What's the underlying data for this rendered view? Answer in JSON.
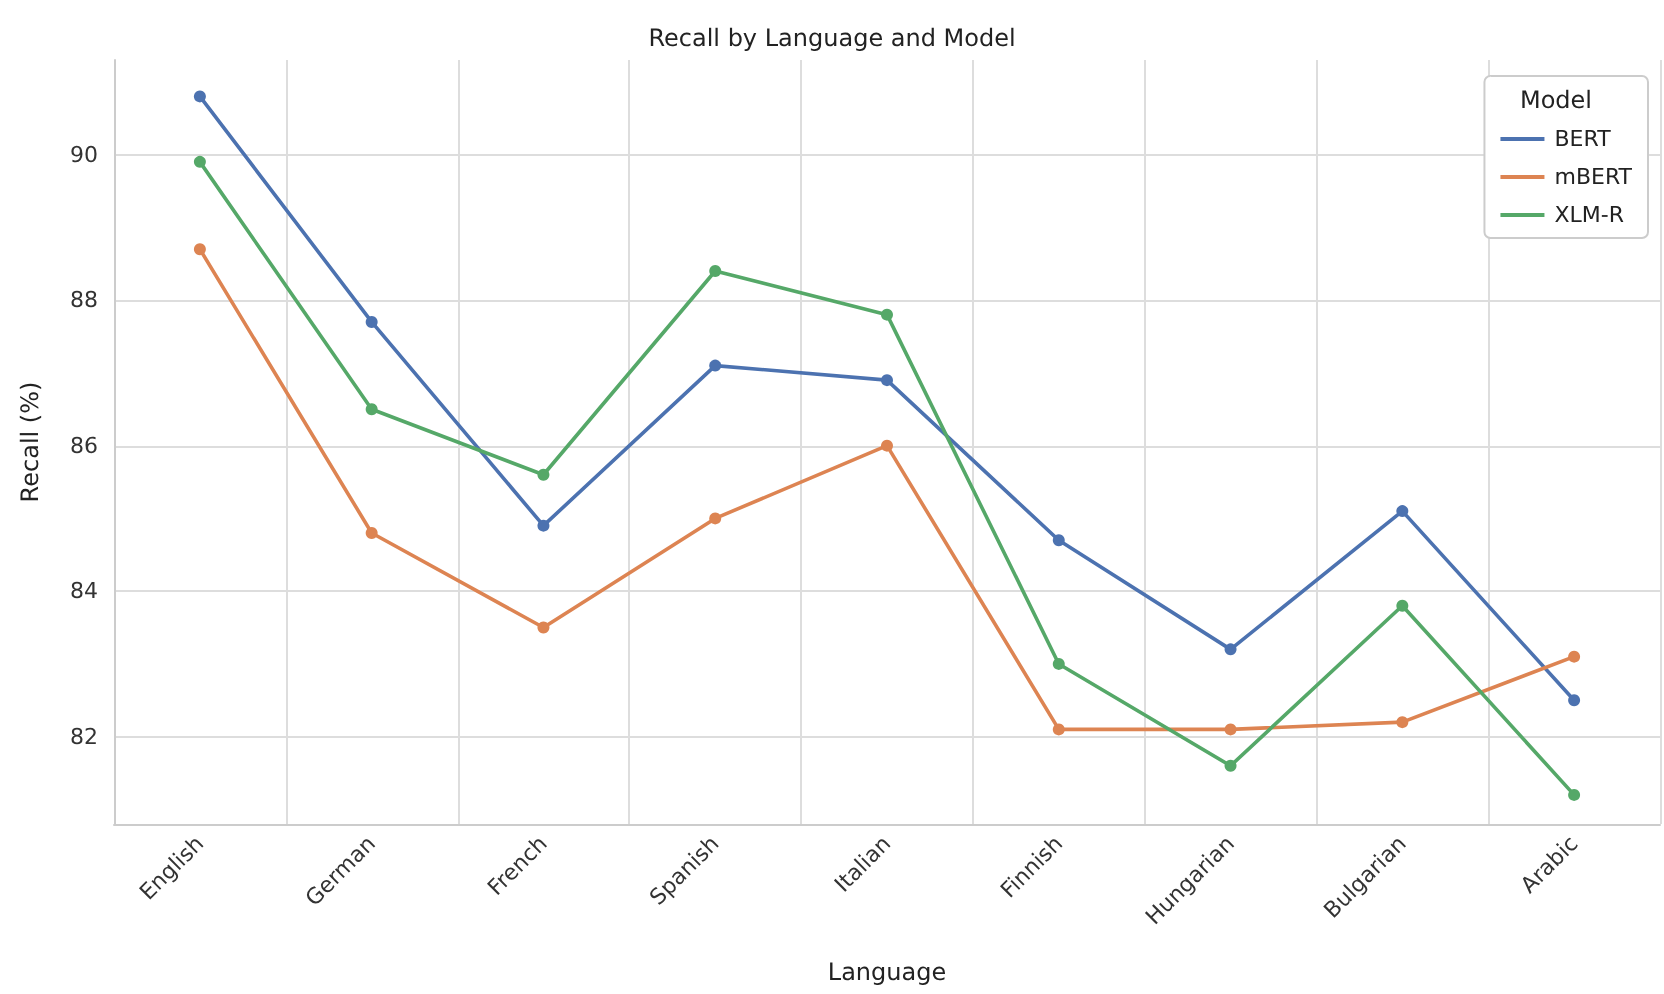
{
  "chart_data": {
    "type": "line",
    "title": "Recall by Language and Model",
    "xlabel": "Language",
    "ylabel": "Recall (%)",
    "legend_title": "Model",
    "categories": [
      "English",
      "German",
      "French",
      "Spanish",
      "Italian",
      "Finnish",
      "Hungarian",
      "Bulgarian",
      "Arabic"
    ],
    "series": [
      {
        "name": "BERT",
        "color": "#4c72b0",
        "values": [
          90.8,
          87.7,
          84.9,
          87.1,
          86.9,
          84.7,
          83.2,
          85.1,
          82.5
        ]
      },
      {
        "name": "mBERT",
        "color": "#dd8452",
        "values": [
          88.7,
          84.8,
          83.5,
          85.0,
          86.0,
          82.1,
          82.1,
          82.2,
          83.1
        ]
      },
      {
        "name": "XLM-R",
        "color": "#55a868",
        "values": [
          89.9,
          86.5,
          85.6,
          88.4,
          87.8,
          83.0,
          81.6,
          83.8,
          81.2
        ]
      }
    ],
    "ylim": [
      80.8,
      91.3
    ],
    "yticks": [
      82,
      84,
      86,
      88,
      90
    ],
    "grid": true,
    "legend": "top right",
    "marker": "circle",
    "line_style": "solid"
  }
}
